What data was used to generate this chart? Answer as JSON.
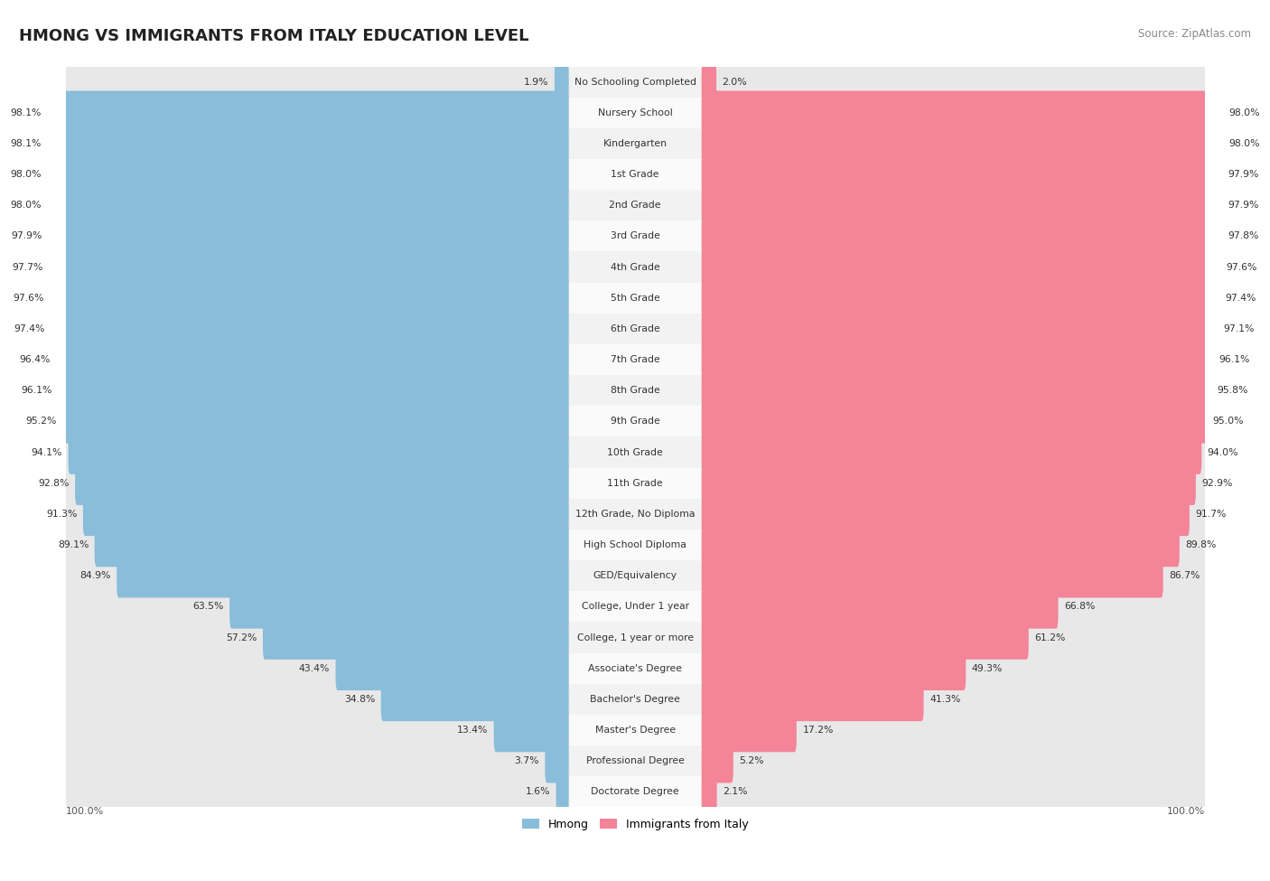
{
  "title": "HMONG VS IMMIGRANTS FROM ITALY EDUCATION LEVEL",
  "source": "Source: ZipAtlas.com",
  "categories": [
    "No Schooling Completed",
    "Nursery School",
    "Kindergarten",
    "1st Grade",
    "2nd Grade",
    "3rd Grade",
    "4th Grade",
    "5th Grade",
    "6th Grade",
    "7th Grade",
    "8th Grade",
    "9th Grade",
    "10th Grade",
    "11th Grade",
    "12th Grade, No Diploma",
    "High School Diploma",
    "GED/Equivalency",
    "College, Under 1 year",
    "College, 1 year or more",
    "Associate's Degree",
    "Bachelor's Degree",
    "Master's Degree",
    "Professional Degree",
    "Doctorate Degree"
  ],
  "hmong": [
    1.9,
    98.1,
    98.1,
    98.0,
    98.0,
    97.9,
    97.7,
    97.6,
    97.4,
    96.4,
    96.1,
    95.2,
    94.1,
    92.8,
    91.3,
    89.1,
    84.9,
    63.5,
    57.2,
    43.4,
    34.8,
    13.4,
    3.7,
    1.6
  ],
  "italy": [
    2.0,
    98.0,
    98.0,
    97.9,
    97.9,
    97.8,
    97.6,
    97.4,
    97.1,
    96.1,
    95.8,
    95.0,
    94.0,
    92.9,
    91.7,
    89.8,
    86.7,
    66.8,
    61.2,
    49.3,
    41.3,
    17.2,
    5.2,
    2.1
  ],
  "hmong_color": "#89BDDA",
  "italy_color": "#F48498",
  "bg_bar_color": "#E8E8E8",
  "row_even_color": "#F2F2F2",
  "row_odd_color": "#FAFAFA",
  "background_color": "#FFFFFF",
  "text_color": "#333333",
  "value_color": "#444444"
}
